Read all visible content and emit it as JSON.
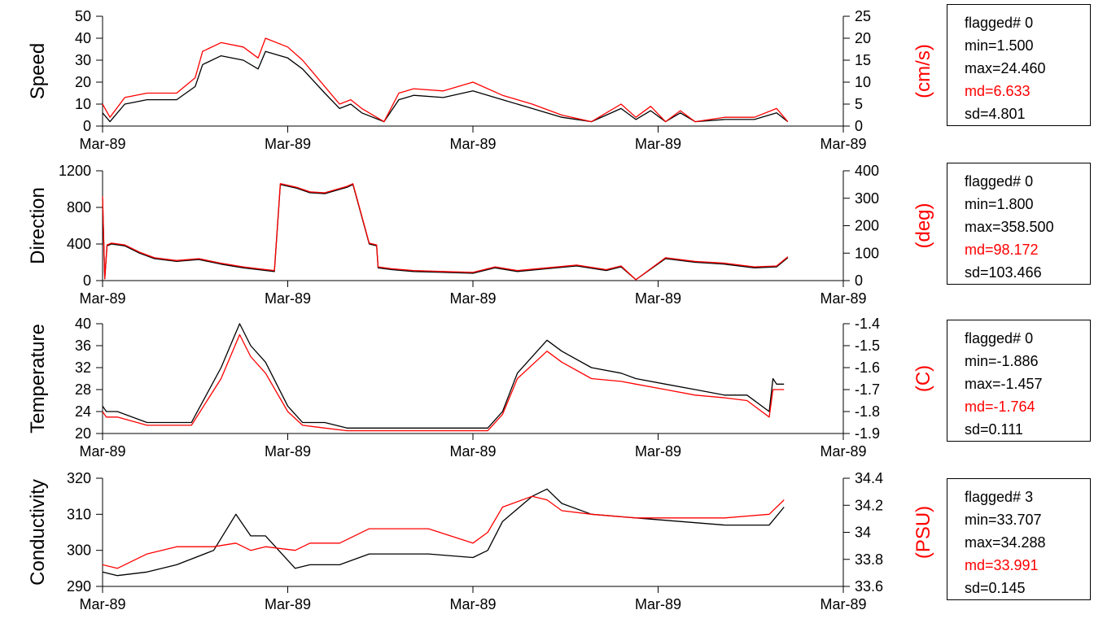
{
  "colors": {
    "primary_series": "#000000",
    "secondary_series": "#ff0000",
    "axis": "#000000"
  },
  "chart_data": [
    {
      "type": "line",
      "ylabel": "Speed",
      "ylabel_right": "(cm/s)",
      "ylim": [
        0,
        50
      ],
      "yticks": [
        "0",
        "10",
        "20",
        "30",
        "40",
        "50"
      ],
      "ylim_right": [
        0,
        25
      ],
      "yticks_right": [
        "0",
        "5",
        "10",
        "15",
        "20",
        "25"
      ],
      "xticks": [
        "Mar-89",
        "Mar-89",
        "Mar-89",
        "Mar-89",
        "Mar-89"
      ],
      "xlim": [
        0,
        1
      ],
      "grid": false,
      "series": [
        {
          "color": "#000000",
          "x": [
            0,
            0.01,
            0.03,
            0.06,
            0.1,
            0.125,
            0.135,
            0.16,
            0.19,
            0.21,
            0.22,
            0.25,
            0.27,
            0.3,
            0.32,
            0.335,
            0.35,
            0.38,
            0.4,
            0.42,
            0.46,
            0.5,
            0.54,
            0.58,
            0.62,
            0.66,
            0.7,
            0.72,
            0.74,
            0.76,
            0.78,
            0.8,
            0.84,
            0.88,
            0.91,
            0.925
          ],
          "y": [
            6,
            2,
            10,
            12,
            12,
            18,
            28,
            32,
            30,
            26,
            34,
            31,
            26,
            15,
            8,
            10,
            6,
            2,
            12,
            14,
            13,
            16,
            12,
            8,
            4,
            2,
            8,
            3,
            7,
            2,
            6,
            2,
            3,
            3,
            6,
            2
          ]
        },
        {
          "color": "#ff0000",
          "x": [
            0,
            0.01,
            0.03,
            0.06,
            0.1,
            0.125,
            0.135,
            0.16,
            0.19,
            0.21,
            0.22,
            0.25,
            0.27,
            0.3,
            0.32,
            0.335,
            0.35,
            0.38,
            0.4,
            0.42,
            0.46,
            0.5,
            0.54,
            0.58,
            0.62,
            0.66,
            0.7,
            0.72,
            0.74,
            0.76,
            0.78,
            0.8,
            0.84,
            0.88,
            0.91,
            0.925
          ],
          "y": [
            10,
            4,
            13,
            15,
            15,
            22,
            34,
            38,
            36,
            31,
            40,
            36,
            30,
            18,
            10,
            12,
            8,
            2,
            15,
            17,
            16,
            20,
            14,
            10,
            5,
            2,
            10,
            4,
            9,
            2,
            7,
            2,
            4,
            4,
            8,
            2
          ]
        }
      ]
    },
    {
      "type": "line",
      "ylabel": "Direction",
      "ylabel_right": "(deg)",
      "ylim": [
        0,
        1200
      ],
      "yticks": [
        "0",
        "400",
        "800",
        "1200"
      ],
      "ylim_right": [
        0,
        400
      ],
      "yticks_right": [
        "0",
        "100",
        "200",
        "300",
        "400"
      ],
      "xticks": [
        "Mar-89",
        "Mar-89",
        "Mar-89",
        "Mar-89",
        "Mar-89"
      ],
      "xlim": [
        0,
        1
      ],
      "grid": false,
      "series": [
        {
          "color": "#000000",
          "x": [
            0,
            0.003,
            0.006,
            0.012,
            0.03,
            0.05,
            0.07,
            0.1,
            0.13,
            0.16,
            0.19,
            0.21,
            0.232,
            0.24,
            0.262,
            0.28,
            0.3,
            0.33,
            0.338,
            0.36,
            0.37,
            0.372,
            0.39,
            0.42,
            0.46,
            0.5,
            0.53,
            0.56,
            0.6,
            0.64,
            0.68,
            0.7,
            0.72,
            0.76,
            0.8,
            0.84,
            0.88,
            0.91,
            0.925
          ],
          "y": [
            900,
            20,
            380,
            400,
            380,
            300,
            240,
            210,
            230,
            180,
            140,
            120,
            100,
            1050,
            1010,
            960,
            950,
            1020,
            1050,
            400,
            380,
            140,
            120,
            100,
            90,
            80,
            140,
            100,
            130,
            160,
            110,
            150,
            10,
            240,
            200,
            180,
            140,
            150,
            250
          ]
        },
        {
          "color": "#ff0000",
          "x": [
            0,
            0.003,
            0.006,
            0.012,
            0.03,
            0.05,
            0.07,
            0.1,
            0.13,
            0.16,
            0.19,
            0.21,
            0.232,
            0.24,
            0.262,
            0.28,
            0.3,
            0.33,
            0.338,
            0.36,
            0.37,
            0.372,
            0.39,
            0.42,
            0.46,
            0.5,
            0.53,
            0.56,
            0.6,
            0.64,
            0.68,
            0.7,
            0.72,
            0.76,
            0.8,
            0.84,
            0.88,
            0.91,
            0.925
          ],
          "y": [
            920,
            20,
            390,
            410,
            390,
            310,
            250,
            220,
            240,
            190,
            150,
            130,
            110,
            1060,
            1020,
            970,
            960,
            1030,
            1060,
            410,
            390,
            150,
            130,
            110,
            100,
            90,
            150,
            110,
            140,
            170,
            120,
            160,
            10,
            250,
            210,
            190,
            150,
            160,
            260
          ]
        }
      ]
    },
    {
      "type": "line",
      "ylabel": "Temperature",
      "ylabel_right": "(C)",
      "ylim": [
        20,
        40
      ],
      "yticks": [
        "20",
        "24",
        "28",
        "32",
        "36",
        "40"
      ],
      "ylim_right": [
        -1.9,
        -1.4
      ],
      "yticks_right": [
        "-1.9",
        "-1.8",
        "-1.7",
        "-1.6",
        "-1.5",
        "-1.4"
      ],
      "xticks": [
        "Mar-89",
        "Mar-89",
        "Mar-89",
        "Mar-89",
        "Mar-89"
      ],
      "xlim": [
        0,
        1
      ],
      "grid": false,
      "series": [
        {
          "color": "#000000",
          "x": [
            0,
            0.005,
            0.02,
            0.06,
            0.12,
            0.16,
            0.185,
            0.2,
            0.22,
            0.25,
            0.27,
            0.3,
            0.33,
            0.42,
            0.52,
            0.54,
            0.56,
            0.6,
            0.62,
            0.66,
            0.7,
            0.72,
            0.76,
            0.8,
            0.84,
            0.87,
            0.9,
            0.905,
            0.91,
            0.92
          ],
          "y": [
            25,
            24,
            24,
            22,
            22,
            32,
            40,
            36,
            33,
            25,
            22,
            22,
            21,
            21,
            21,
            24,
            31,
            37,
            35,
            32,
            31,
            30,
            29,
            28,
            27,
            27,
            24,
            30,
            29,
            29
          ]
        },
        {
          "color": "#ff0000",
          "x": [
            0,
            0.005,
            0.02,
            0.06,
            0.12,
            0.16,
            0.185,
            0.2,
            0.22,
            0.25,
            0.27,
            0.3,
            0.33,
            0.42,
            0.52,
            0.54,
            0.56,
            0.6,
            0.62,
            0.66,
            0.7,
            0.72,
            0.76,
            0.8,
            0.84,
            0.87,
            0.9,
            0.905,
            0.91,
            0.92
          ],
          "y": [
            24,
            23,
            23,
            21.5,
            21.5,
            30,
            38,
            34,
            31,
            24,
            21.5,
            21,
            20.5,
            20.5,
            20.5,
            23.5,
            30,
            35,
            33,
            30,
            29.5,
            29,
            28,
            27,
            26.5,
            26,
            23,
            28,
            28,
            28
          ]
        }
      ]
    },
    {
      "type": "line",
      "ylabel": "Conductivity",
      "ylabel_right": "(PSU)",
      "ylim": [
        290,
        320
      ],
      "yticks": [
        "290",
        "300",
        "310",
        "320"
      ],
      "ylim_right": [
        33.6,
        34.4
      ],
      "yticks_right": [
        "33.6",
        "33.8",
        "34",
        "34.2",
        "34.4"
      ],
      "xticks": [
        "Mar-89",
        "Mar-89",
        "Mar-89",
        "Mar-89",
        "Mar-89"
      ],
      "xlim": [
        0,
        1
      ],
      "grid": false,
      "series": [
        {
          "color": "#000000",
          "x": [
            0,
            0.02,
            0.06,
            0.1,
            0.15,
            0.18,
            0.2,
            0.22,
            0.26,
            0.28,
            0.32,
            0.36,
            0.44,
            0.5,
            0.52,
            0.54,
            0.58,
            0.6,
            0.62,
            0.66,
            0.72,
            0.78,
            0.84,
            0.9,
            0.92
          ],
          "y": [
            294,
            293,
            294,
            296,
            300,
            310,
            304,
            304,
            295,
            296,
            296,
            299,
            299,
            298,
            300,
            308,
            315,
            317,
            313,
            310,
            309,
            308,
            307,
            307,
            312
          ]
        },
        {
          "color": "#ff0000",
          "x": [
            0,
            0.02,
            0.06,
            0.1,
            0.15,
            0.18,
            0.2,
            0.22,
            0.26,
            0.28,
            0.32,
            0.36,
            0.44,
            0.5,
            0.52,
            0.54,
            0.58,
            0.6,
            0.62,
            0.66,
            0.72,
            0.78,
            0.84,
            0.9,
            0.92
          ],
          "y": [
            296,
            295,
            299,
            301,
            301,
            302,
            300,
            301,
            300,
            302,
            302,
            306,
            306,
            302,
            305,
            312,
            315,
            314,
            311,
            310,
            309,
            309,
            309,
            310,
            314
          ]
        }
      ]
    }
  ],
  "stats_boxes": [
    {
      "flagged": "flagged# 0",
      "min": "min=1.500",
      "max": "max=24.460",
      "md": "md=6.633",
      "sd": "sd=4.801"
    },
    {
      "flagged": "flagged# 0",
      "min": "min=1.800",
      "max": "max=358.500",
      "md": "md=98.172",
      "sd": "sd=103.466"
    },
    {
      "flagged": "flagged# 0",
      "min": "min=-1.886",
      "max": "max=-1.457",
      "md": "md=-1.764",
      "sd": "sd=0.111"
    },
    {
      "flagged": "flagged# 3",
      "min": "min=33.707",
      "max": "max=34.288",
      "md": "md=33.991",
      "sd": "sd=0.145"
    }
  ]
}
